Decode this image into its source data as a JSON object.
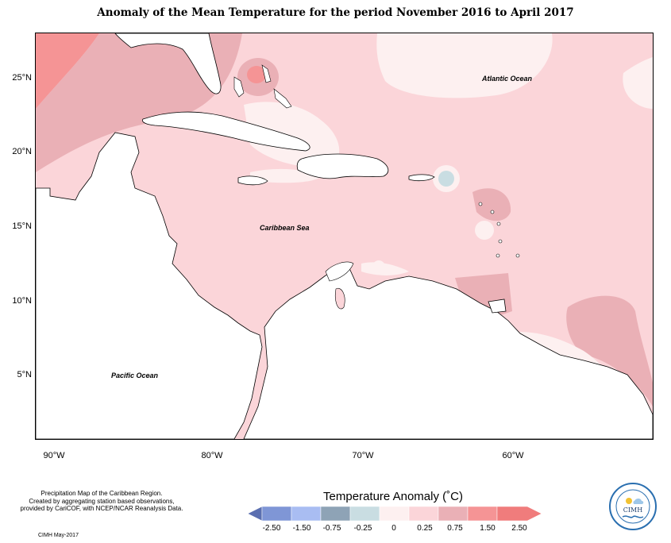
{
  "title": "Anomaly of the Mean Temperature for the period November 2016 to April 2017",
  "map": {
    "latitude_labels": [
      "25°N",
      "20°N",
      "15°N",
      "10°N",
      "5°N"
    ],
    "longitude_labels": [
      "90°W",
      "80°W",
      "70°W",
      "60°W"
    ],
    "ocean_labels": {
      "atlantic": "Atlantic Ocean",
      "caribbean": "Caribbean Sea",
      "pacific": "Pacific Ocean"
    }
  },
  "caption": {
    "line1": "Precipitation Map of the Caribbean Region.",
    "line2": "Created by aggregating station based observations,",
    "line3": "provided by CariCOF, with NCEP/NCAR Reanalysis Data."
  },
  "credit": "CIMH May-2017",
  "legend": {
    "title": "Temperature Anomaly (˚C)",
    "ticks": [
      "-2.50",
      "-1.50",
      "-0.75",
      "-0.25",
      "0",
      "0.25",
      "0.75",
      "1.50",
      "2.50"
    ],
    "colors": [
      "#5b6fb0",
      "#7f96d6",
      "#a9bdf2",
      "#8ea3b6",
      "#c9dde2",
      "#fdf0f0",
      "#fbd5d9",
      "#eab0b6",
      "#f59495",
      "#f07c7c"
    ]
  },
  "logo": {
    "text": "CIMH"
  }
}
